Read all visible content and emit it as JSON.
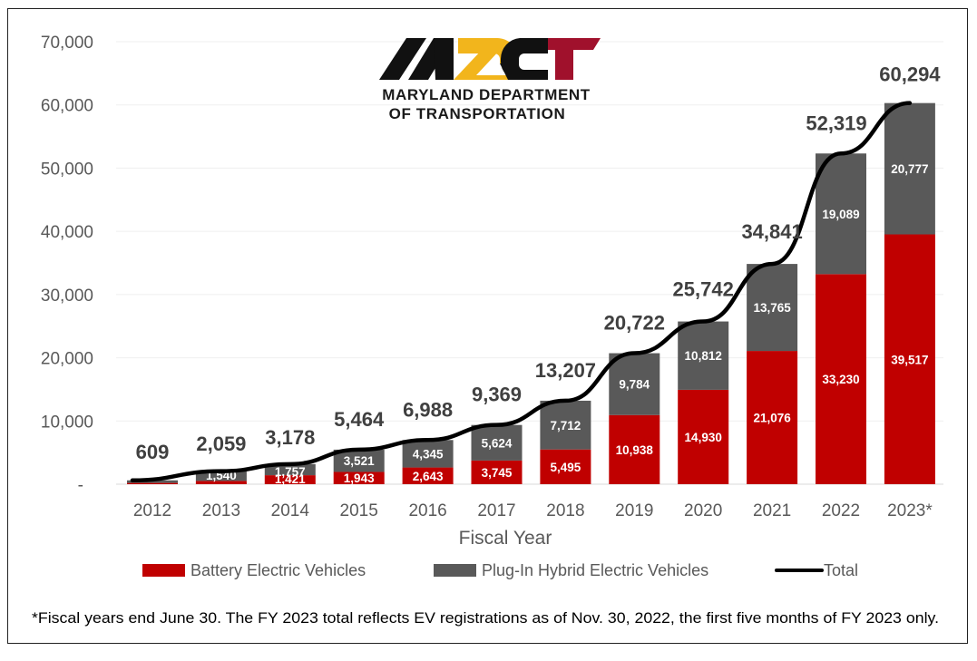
{
  "chart_data": {
    "type": "bar",
    "stacked": true,
    "title": "",
    "xlabel": "Fiscal Year",
    "ylabel": "",
    "ylim": [
      0,
      70000
    ],
    "yticks": [
      0,
      10000,
      20000,
      30000,
      40000,
      50000,
      60000,
      70000
    ],
    "ytick_labels": [
      "-",
      "10,000",
      "20,000",
      "30,000",
      "40,000",
      "50,000",
      "60,000",
      "70,000"
    ],
    "grid": true,
    "legend_position": "bottom",
    "categories": [
      "2012",
      "2013",
      "2014",
      "2015",
      "2016",
      "2017",
      "2018",
      "2019",
      "2020",
      "2021",
      "2022",
      "2023*"
    ],
    "series": [
      {
        "name": "Battery Electric Vehicles",
        "kind": "bar",
        "color": "#c00000",
        "values": [
          200,
          519,
          1421,
          1943,
          2643,
          3745,
          5495,
          10938,
          14930,
          21076,
          33230,
          39517
        ],
        "labels": [
          "",
          "",
          "1,421",
          "1,943",
          "2,643",
          "3,745",
          "5,495",
          "10,938",
          "14,930",
          "21,076",
          "33,230",
          "39,517"
        ]
      },
      {
        "name": "Plug-In Hybrid Electric Vehicles",
        "kind": "bar",
        "color": "#595959",
        "values": [
          409,
          1540,
          1757,
          3521,
          4345,
          5624,
          7712,
          9784,
          10812,
          13765,
          19089,
          20777
        ],
        "labels": [
          "",
          "1,540",
          "1,757",
          "3,521",
          "4,345",
          "5,624",
          "7,712",
          "9,784",
          "10,812",
          "13,765",
          "19,089",
          "20,777"
        ]
      },
      {
        "name": "Total",
        "kind": "line",
        "color": "#000000",
        "values": [
          609,
          2059,
          3178,
          5464,
          6988,
          9369,
          13207,
          20722,
          25742,
          34841,
          52319,
          60294
        ],
        "labels": [
          "609",
          "2,059",
          "3,178",
          "5,464",
          "6,988",
          "9,369",
          "13,207",
          "20,722",
          "25,742",
          "34,841",
          "52,319",
          "60,294"
        ]
      }
    ],
    "annotations": [
      "*Fiscal years end June 30. The FY 2023 total reflects EV registrations as of Nov. 30, 2022, the first five months of FY 2023 only."
    ]
  },
  "logo": {
    "mark": "MDOT",
    "line1": "MARYLAND DEPARTMENT",
    "line2": "OF TRANSPORTATION",
    "colors": {
      "black": "#111111",
      "gold": "#f2b51c",
      "red": "#a0112c"
    }
  },
  "footnote": "*Fiscal years end June 30. The FY 2023 total reflects EV registrations as of Nov. 30, 2022, the first five months of FY 2023 only."
}
